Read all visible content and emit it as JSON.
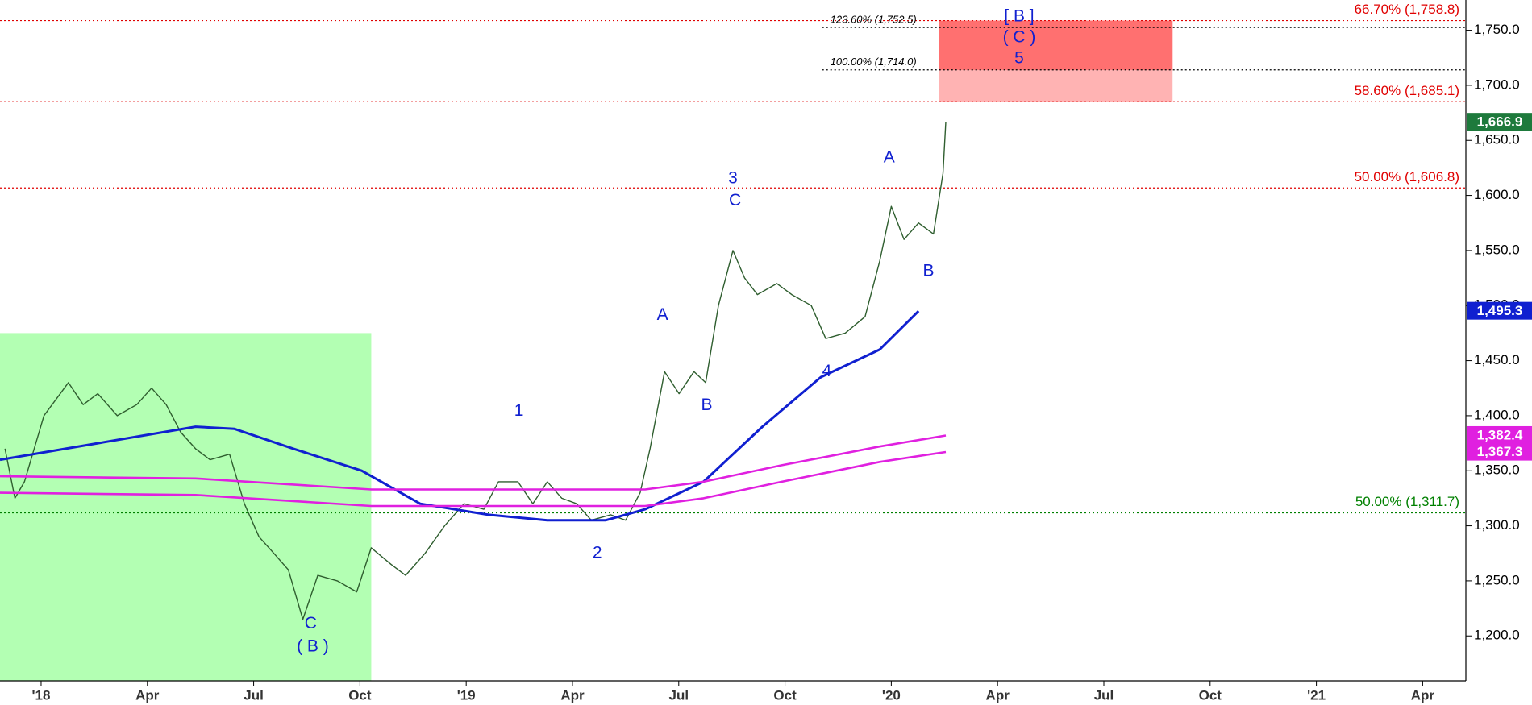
{
  "chart_data": {
    "type": "line",
    "xlim": [
      -1.16,
      40.22
    ],
    "ylim": [
      1159.2,
      1777.5
    ],
    "xticks": [
      {
        "value": 0,
        "label": "'18"
      },
      {
        "value": 3,
        "label": "Apr"
      },
      {
        "value": 6,
        "label": "Jul"
      },
      {
        "value": 9,
        "label": "Oct"
      },
      {
        "value": 12,
        "label": "'19"
      },
      {
        "value": 15,
        "label": "Apr"
      },
      {
        "value": 18,
        "label": "Jul"
      },
      {
        "value": 21,
        "label": "Oct"
      },
      {
        "value": 24,
        "label": "'20"
      },
      {
        "value": 27,
        "label": "Apr"
      },
      {
        "value": 30,
        "label": "Jul"
      },
      {
        "value": 33,
        "label": "Oct"
      },
      {
        "value": 36,
        "label": "'21"
      },
      {
        "value": 39,
        "label": "Apr"
      }
    ],
    "yticks": [
      {
        "value": 1200,
        "label": "1,200.0"
      },
      {
        "value": 1250,
        "label": "1,250.0"
      },
      {
        "value": 1300,
        "label": "1,300.0"
      },
      {
        "value": 1350,
        "label": "1,350.0"
      },
      {
        "value": 1400,
        "label": "1,400.0"
      },
      {
        "value": 1450,
        "label": "1,450.0"
      },
      {
        "value": 1500,
        "label": "1,500.0"
      },
      {
        "value": 1550,
        "label": "1,550.0"
      },
      {
        "value": 1600,
        "label": "1,600.0"
      },
      {
        "value": 1650,
        "label": "1,650.0"
      },
      {
        "value": 1700,
        "label": "1,700.0"
      },
      {
        "value": 1750,
        "label": "1,750.0"
      }
    ],
    "grid": false,
    "series": [
      {
        "color": "#2f5e2f",
        "width": 1.4,
        "x": [
          -1.02,
          -0.74,
          -0.47,
          0.08,
          0.77,
          1.19,
          1.6,
          2.15,
          2.7,
          3.12,
          3.53,
          3.94,
          4.36,
          4.77,
          5.32,
          5.74,
          6.15,
          6.57,
          6.98,
          7.39,
          7.81,
          8.36,
          8.91,
          9.32,
          9.88,
          10.29,
          10.84,
          11.39,
          11.94,
          12.5,
          12.91,
          13.46,
          13.88,
          14.29,
          14.7,
          15.12,
          15.53,
          16.08,
          16.5,
          16.91,
          17.19,
          17.6,
          18.01,
          18.43,
          18.76,
          19.12,
          19.53,
          19.86,
          20.22,
          20.77,
          21.19,
          21.74,
          22.15,
          22.7,
          23.26,
          23.67,
          24.0,
          24.36,
          24.77,
          25.19,
          25.46,
          25.54
        ],
        "values": [
          1370,
          1325,
          1340,
          1400,
          1430,
          1410,
          1420,
          1400,
          1410,
          1425,
          1410,
          1385,
          1370,
          1360,
          1365,
          1320,
          1290,
          1275,
          1260,
          1215,
          1255,
          1250,
          1240,
          1280,
          1265,
          1255,
          1275,
          1300,
          1320,
          1315,
          1340,
          1340,
          1320,
          1340,
          1325,
          1320,
          1305,
          1310,
          1305,
          1330,
          1370,
          1440,
          1420,
          1440,
          1430,
          1500,
          1550,
          1525,
          1510,
          1520,
          1510,
          1500,
          1470,
          1475,
          1490,
          1540,
          1590,
          1560,
          1575,
          1565,
          1620,
          1667
        ],
        "tag": {
          "value": 1666.9,
          "label": "1,666.9",
          "color": "#1e7a3c"
        }
      },
      {
        "color": "#1020d0",
        "width": 3,
        "x": [
          -1.16,
          1.6,
          4.36,
          5.46,
          7.12,
          9.05,
          10.7,
          12.63,
          14.29,
          15.94,
          17.05,
          18.7,
          20.36,
          22.01,
          23.67,
          24.77
        ],
        "values": [
          1360,
          1375,
          1390,
          1388,
          1370,
          1350,
          1320,
          1310,
          1305,
          1305,
          1315,
          1340,
          1390,
          1435,
          1460,
          1495
        ],
        "tag": {
          "value": 1495.3,
          "label": "1,495.3",
          "color": "#1020d0"
        }
      },
      {
        "color": "#e020e0",
        "width": 2.6,
        "x": [
          -1.16,
          4.36,
          9.32,
          17.05,
          18.7,
          20.91,
          23.67,
          25.54
        ],
        "values": [
          1345,
          1343,
          1333,
          1333,
          1340,
          1355,
          1372,
          1382
        ],
        "tag": {
          "value": 1382.4,
          "label": "1,382.4",
          "color": "#e020e0"
        }
      },
      {
        "color": "#e020e0",
        "width": 2.6,
        "x": [
          -1.16,
          4.36,
          9.32,
          14.29,
          17.05,
          18.7,
          20.91,
          23.67,
          25.54
        ],
        "values": [
          1330,
          1328,
          1318,
          1318,
          1318,
          1325,
          1340,
          1358,
          1367
        ],
        "tag": {
          "value": 1367.3,
          "label": "1,367.3",
          "color": "#e020e0"
        }
      }
    ],
    "zones": [
      {
        "x": [
          -1.16,
          9.32
        ],
        "y": [
          1159.2,
          1475
        ],
        "color": "#b3ffb3"
      },
      {
        "x": [
          25.35,
          31.94
        ],
        "y": [
          1685.1,
          1758.8
        ],
        "color": "#ffb3b3"
      },
      {
        "x": [
          25.35,
          31.94
        ],
        "y": [
          1714.0,
          1758.8
        ],
        "color": "#ff7070"
      }
    ],
    "levels": [
      {
        "value": 1758.8,
        "label": "66.70% (1,758.8)",
        "color": "#e00000",
        "start": -1.16
      },
      {
        "value": 1752.5,
        "label": "123.60% (1,752.5)",
        "color": "#000000",
        "start": 22.05
      },
      {
        "value": 1714.0,
        "label": "100.00% (1,714.0)",
        "color": "#000000",
        "start": 22.05
      },
      {
        "value": 1685.1,
        "label": "58.60% (1,685.1)",
        "color": "#e00000",
        "start": -1.16
      },
      {
        "value": 1606.8,
        "label": "50.00% (1,606.8)",
        "color": "#e00000",
        "start": -1.16
      },
      {
        "value": 1311.7,
        "label": "50.00% (1,311.7)",
        "color": "#008000",
        "start": -1.16
      }
    ],
    "annotations": [
      {
        "text": "[ B ]",
        "x": 27.61,
        "y": 1762,
        "color": "#1020d0"
      },
      {
        "text": "( C )",
        "x": 27.61,
        "y": 1743,
        "color": "#1020d0"
      },
      {
        "text": "5",
        "x": 27.61,
        "y": 1724,
        "color": "#1020d0"
      },
      {
        "text": "3",
        "x": 19.53,
        "y": 1615,
        "color": "#1020d0"
      },
      {
        "text": "C",
        "x": 19.59,
        "y": 1595,
        "color": "#1020d0"
      },
      {
        "text": "A",
        "x": 23.94,
        "y": 1634,
        "color": "#1020d0"
      },
      {
        "text": "B",
        "x": 25.05,
        "y": 1531,
        "color": "#1020d0"
      },
      {
        "text": "A",
        "x": 17.54,
        "y": 1491,
        "color": "#1020d0"
      },
      {
        "text": "B",
        "x": 18.79,
        "y": 1409,
        "color": "#1020d0"
      },
      {
        "text": "1",
        "x": 13.49,
        "y": 1404,
        "color": "#1020d0"
      },
      {
        "text": "2",
        "x": 15.7,
        "y": 1275,
        "color": "#1020d0"
      },
      {
        "text": "4",
        "x": 22.18,
        "y": 1440,
        "color": "#1020d0"
      },
      {
        "text": "C",
        "x": 7.61,
        "y": 1211,
        "color": "#1020d0"
      },
      {
        "text": "( B )",
        "x": 7.67,
        "y": 1190,
        "color": "#1020d0"
      }
    ]
  }
}
